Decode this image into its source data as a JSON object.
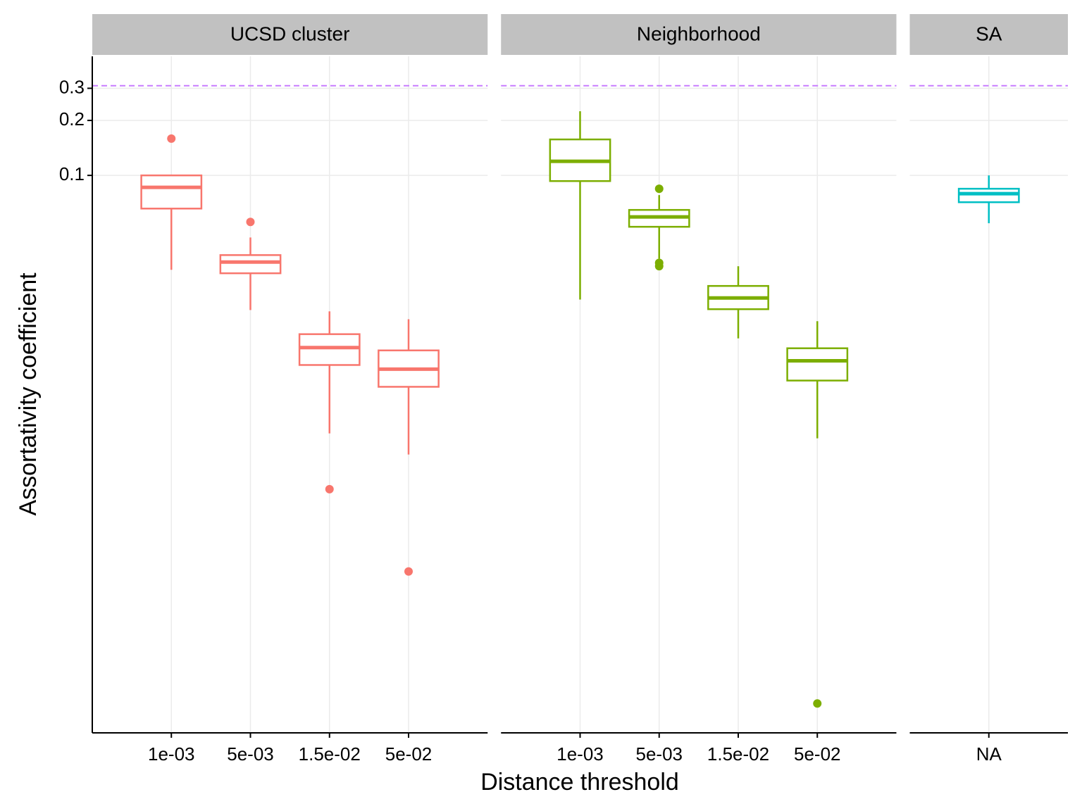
{
  "chart_data": {
    "type": "box",
    "xlabel": "Distance threshold",
    "ylabel": "Assortativity coefficient",
    "ylog": true,
    "ylim": [
      8.84e-05,
      0.449
    ],
    "yticks": [
      0.1,
      0.2,
      0.3
    ],
    "grid": true,
    "hline": 0.31,
    "hline_color": "#c77cff",
    "facets": [
      {
        "name": "UCSD cluster",
        "color": "#f8766d",
        "categories": [
          "1e-03",
          "5e-03",
          "1.5e-02",
          "5e-02"
        ],
        "boxes": [
          {
            "min": 0.0304,
            "q1": 0.0658,
            "median": 0.086,
            "q3": 0.1,
            "max": 0.1009,
            "outliers": [
              0.159
            ]
          },
          {
            "min": 0.0183,
            "q1": 0.0291,
            "median": 0.0335,
            "q3": 0.0366,
            "max": 0.0457,
            "outliers": [
              0.0556
            ]
          },
          {
            "min": 0.00386,
            "q1": 0.00915,
            "median": 0.0114,
            "q3": 0.0135,
            "max": 0.018,
            "outliers": [
              0.00191
            ]
          },
          {
            "min": 0.00296,
            "q1": 0.00695,
            "median": 0.00868,
            "q3": 0.011,
            "max": 0.0163,
            "outliers": [
              0.000677
            ]
          }
        ]
      },
      {
        "name": "Neighborhood",
        "color": "#7cae00",
        "categories": [
          "1e-03",
          "5e-03",
          "1.5e-02",
          "5e-02"
        ],
        "boxes": [
          {
            "min": 0.0209,
            "q1": 0.0931,
            "median": 0.1195,
            "q3": 0.1574,
            "max": 0.2246,
            "outliers": []
          },
          {
            "min": 0.035,
            "q1": 0.0523,
            "median": 0.0592,
            "q3": 0.0647,
            "max": 0.078,
            "outliers": [
              0.0845,
              0.0332,
              0.0318
            ]
          },
          {
            "min": 0.0128,
            "q1": 0.0185,
            "median": 0.0213,
            "q3": 0.0248,
            "max": 0.0318,
            "outliers": []
          },
          {
            "min": 0.00363,
            "q1": 0.00752,
            "median": 0.00965,
            "q3": 0.0113,
            "max": 0.0159,
            "outliers": [
              0.000128
            ]
          }
        ]
      },
      {
        "name": "SA",
        "color": "#00bfc4",
        "categories": [
          "NA"
        ],
        "boxes": [
          {
            "min": 0.0547,
            "q1": 0.0713,
            "median": 0.0794,
            "q3": 0.0845,
            "max": 0.1,
            "outliers": []
          }
        ]
      }
    ]
  }
}
